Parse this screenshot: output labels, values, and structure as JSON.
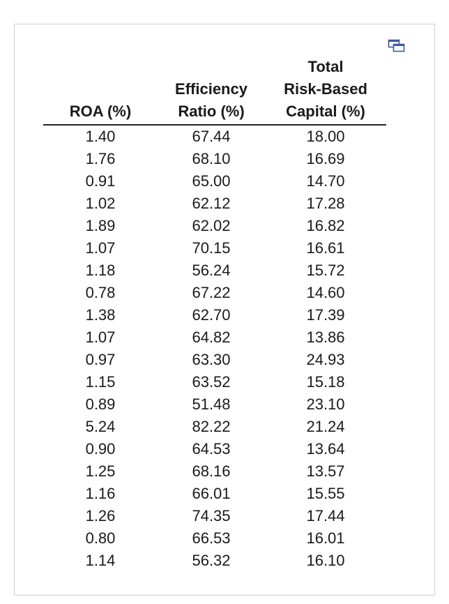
{
  "table": {
    "headers": {
      "col1": [
        "ROA (%)"
      ],
      "col2": [
        "Efficiency",
        "Ratio (%)"
      ],
      "col3": [
        "Total",
        "Risk-Based",
        "Capital (%)"
      ]
    },
    "rows": [
      [
        "1.40",
        "67.44",
        "18.00"
      ],
      [
        "1.76",
        "68.10",
        "16.69"
      ],
      [
        "0.91",
        "65.00",
        "14.70"
      ],
      [
        "1.02",
        "62.12",
        "17.28"
      ],
      [
        "1.89",
        "62.02",
        "16.82"
      ],
      [
        "1.07",
        "70.15",
        "16.61"
      ],
      [
        "1.18",
        "56.24",
        "15.72"
      ],
      [
        "0.78",
        "67.22",
        "14.60"
      ],
      [
        "1.38",
        "62.70",
        "17.39"
      ],
      [
        "1.07",
        "64.82",
        "13.86"
      ],
      [
        "0.97",
        "63.30",
        "24.93"
      ],
      [
        "1.15",
        "63.52",
        "15.18"
      ],
      [
        "0.89",
        "51.48",
        "23.10"
      ],
      [
        "5.24",
        "82.22",
        "21.24"
      ],
      [
        "0.90",
        "64.53",
        "13.64"
      ],
      [
        "1.25",
        "68.16",
        "13.57"
      ],
      [
        "1.16",
        "66.01",
        "15.55"
      ],
      [
        "1.26",
        "74.35",
        "17.44"
      ],
      [
        "0.80",
        "66.53",
        "16.01"
      ],
      [
        "1.14",
        "56.32",
        "16.10"
      ]
    ]
  },
  "icons": {
    "popout": "popout-window-icon"
  },
  "colors": {
    "border": "#cfcfcf",
    "icon": "#3d5a9e",
    "text": "#1a1a1a"
  }
}
